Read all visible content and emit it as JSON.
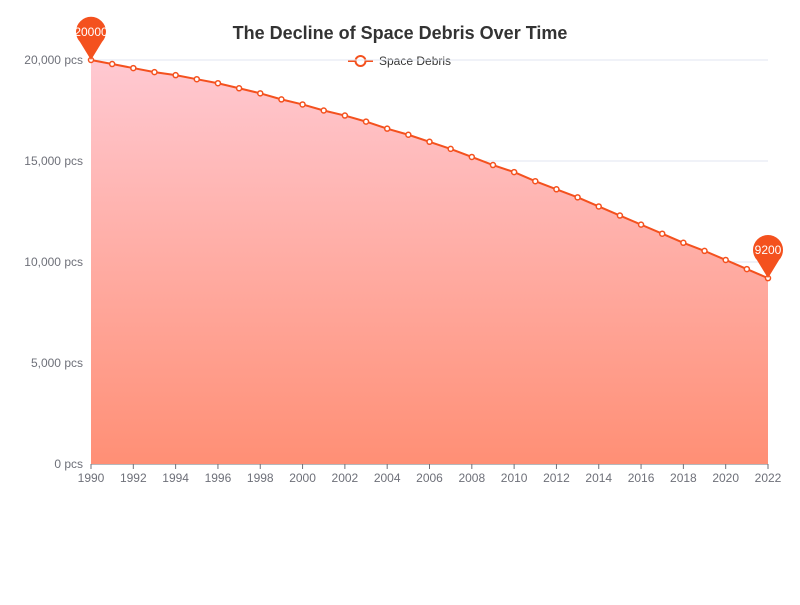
{
  "chart_data": {
    "type": "area",
    "title": "The Decline of Space Debris Over Time",
    "xlabel": "",
    "ylabel": "",
    "y_unit_suffix": " pcs",
    "x": [
      1990,
      1991,
      1992,
      1993,
      1994,
      1995,
      1996,
      1997,
      1998,
      1999,
      2000,
      2001,
      2002,
      2003,
      2004,
      2005,
      2006,
      2007,
      2008,
      2009,
      2010,
      2011,
      2012,
      2013,
      2014,
      2015,
      2016,
      2017,
      2018,
      2019,
      2020,
      2021,
      2022
    ],
    "x_tick_labels": [
      "1990",
      "1992",
      "1994",
      "1996",
      "1998",
      "2000",
      "2002",
      "2004",
      "2006",
      "2008",
      "2010",
      "2012",
      "2014",
      "2016",
      "2018",
      "2020",
      "2022"
    ],
    "y_tick_labels": [
      "0 pcs",
      "5,000 pcs",
      "10,000 pcs",
      "15,000 pcs",
      "20,000 pcs"
    ],
    "y_ticks": [
      0,
      5000,
      10000,
      15000,
      20000
    ],
    "ylim": [
      0,
      20000
    ],
    "grid": true,
    "legend_position": "top-center",
    "series": [
      {
        "name": "Space Debris",
        "values": [
          20000,
          19800,
          19600,
          19400,
          19250,
          19050,
          18850,
          18600,
          18350,
          18050,
          17800,
          17500,
          17250,
          16950,
          16600,
          16300,
          15950,
          15600,
          15200,
          14800,
          14450,
          14000,
          13600,
          13200,
          12750,
          12300,
          11850,
          11400,
          10950,
          10550,
          10100,
          9650,
          9200
        ]
      }
    ],
    "mark_points": [
      {
        "label": "20000",
        "type": "max"
      },
      {
        "label": "9200",
        "type": "min"
      }
    ],
    "colors": {
      "line": "#f4511e",
      "area_top": "#ffc9d2",
      "area_bottom": "#ff8f75",
      "pin": "#f4511e",
      "grid": "#e0e6f1",
      "axis": "#6e7079"
    }
  }
}
